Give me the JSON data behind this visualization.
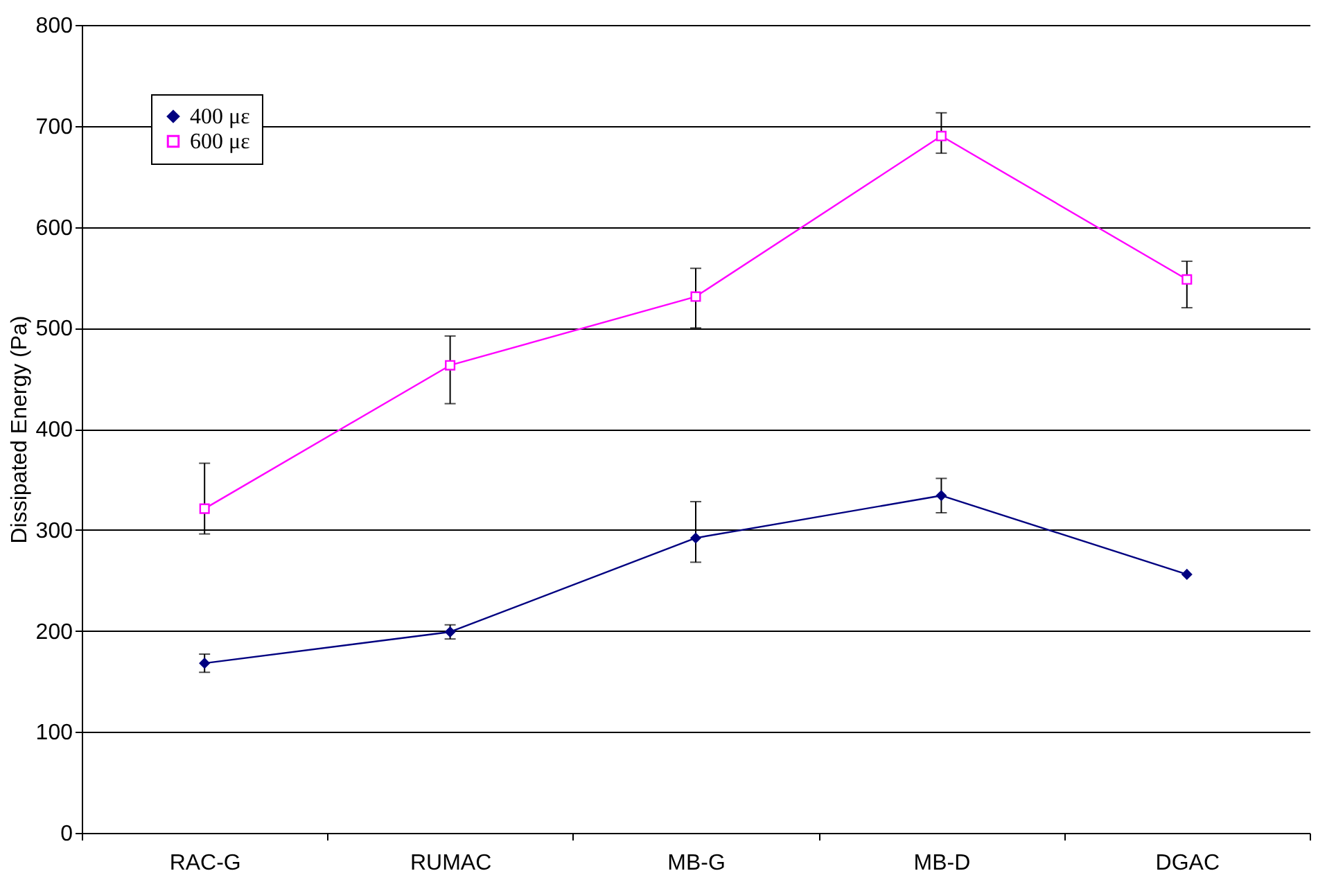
{
  "chart_data": {
    "type": "line",
    "ylabel": "Dissipated Energy (Pa)",
    "categories": [
      "RAC-G",
      "RUMAC",
      "MB-G",
      "MB-D",
      "DGAC"
    ],
    "series": [
      {
        "name": "400 με",
        "color": "#000080",
        "marker": "diamond",
        "values": [
          168,
          199,
          292,
          334,
          256
        ],
        "errors": [
          9,
          7,
          [
            268,
            328
          ],
          17,
          null
        ]
      },
      {
        "name": "600 με",
        "color": "#ff00ff",
        "marker": "square",
        "values": [
          321,
          463,
          531,
          690,
          548
        ],
        "errors": [
          [
            296,
            366
          ],
          [
            425,
            492
          ],
          [
            500,
            559
          ],
          [
            673,
            713
          ],
          [
            520,
            566
          ]
        ]
      }
    ],
    "ylim": [
      0,
      800
    ],
    "yticks": [
      0,
      100,
      200,
      300,
      400,
      500,
      600,
      700,
      800
    ],
    "grid": "y",
    "legend": "top left"
  }
}
